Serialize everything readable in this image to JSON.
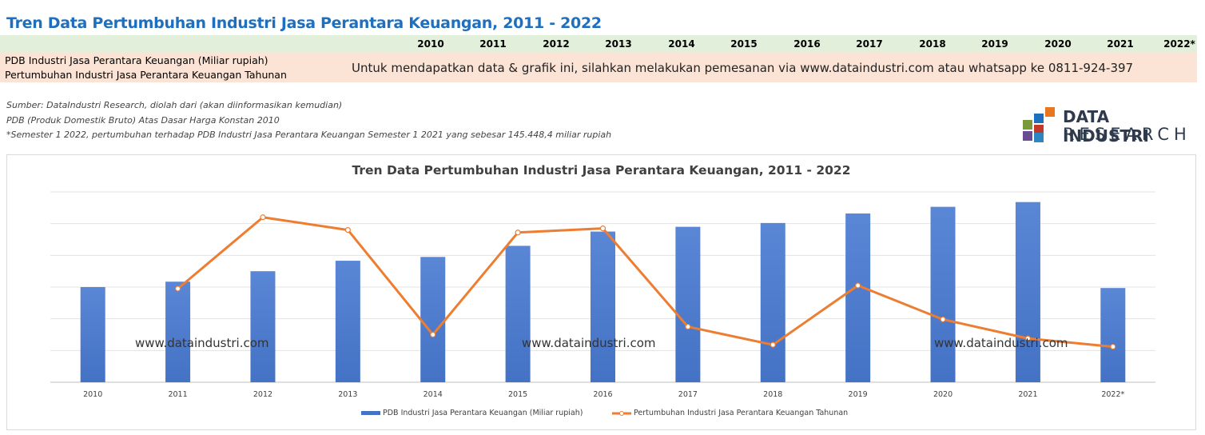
{
  "page": {
    "title": "Tren Data Pertumbuhan Industri Jasa Perantara Keuangan, 2011 - 2022"
  },
  "table": {
    "years": [
      "2010",
      "2011",
      "2012",
      "2013",
      "2014",
      "2015",
      "2016",
      "2017",
      "2018",
      "2019",
      "2020",
      "2021",
      "2022*"
    ],
    "row_labels": [
      "PDB Industri Jasa Perantara Keuangan (Miliar rupiah)",
      "Pertumbuhan Industri Jasa Perantara Keuangan Tahunan"
    ],
    "order_note": "Untuk mendapatkan data & grafik ini, silahkan melakukan pemesanan via www.dataindustri.com atau whatsapp ke 0811-924-397"
  },
  "notes": {
    "source": "Sumber: DataIndustri Research, diolah dari (akan diinformasikan kemudian)",
    "pdb": "PDB (Produk Domestik Bruto) Atas Dasar Harga Konstan 2010",
    "semester": "*Semester 1 2022, pertumbuhan terhadap PDB Industri Jasa Perantara Keuangan  Semester 1 2021 yang sebesar 145.448,4 miliar rupiah"
  },
  "logo": {
    "line1": "DATA INDUSTRI",
    "line2": "RESEARCH",
    "colors": [
      "#e87722",
      "#1f6fbf",
      "#7a9a3a",
      "#c0392b",
      "#6a4c93",
      "#2e86c1"
    ]
  },
  "watermark": "www.dataindustri.com",
  "chart_data": {
    "type": "bar+line",
    "title": "Tren Data Pertumbuhan Industri Jasa Perantara Keuangan, 2011 - 2022",
    "categories": [
      "2010",
      "2011",
      "2012",
      "2013",
      "2014",
      "2015",
      "2016",
      "2017",
      "2018",
      "2019",
      "2020",
      "2021",
      "2022*"
    ],
    "series": [
      {
        "name": "PDB Industri Jasa Perantara Keuangan (Miliar rupiah)",
        "type": "bar",
        "color": "#4472c4",
        "values": [
          3.0,
          3.17,
          3.5,
          3.83,
          3.95,
          4.3,
          4.75,
          4.9,
          5.02,
          5.32,
          5.53,
          5.68,
          2.97
        ]
      },
      {
        "name": "Pertumbuhan Industri Jasa Perantara Keuangan Tahunan",
        "type": "line",
        "color": "#ed7d31",
        "values": [
          null,
          2.95,
          5.2,
          4.8,
          1.5,
          4.72,
          4.85,
          1.75,
          1.18,
          3.05,
          1.98,
          1.38,
          1.12
        ]
      }
    ],
    "ylim": [
      0,
      6
    ],
    "grid": true,
    "y_tick_labels_shown": false,
    "legend": "bottom"
  }
}
